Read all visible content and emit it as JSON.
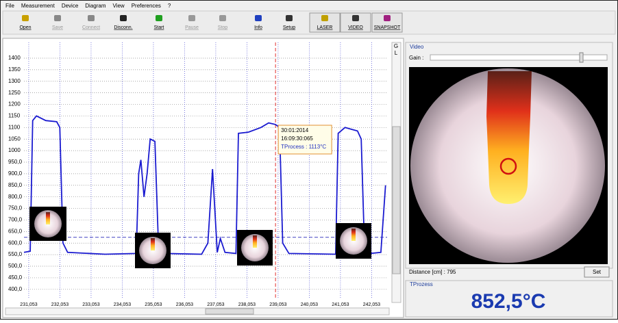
{
  "menu": [
    "File",
    "Measurement",
    "Device",
    "Diagram",
    "View",
    "Preferences",
    "?"
  ],
  "toolbar": [
    "Open",
    "Save",
    "Connect",
    "Disconn.",
    "Start",
    "Pause",
    "Stop",
    "Info",
    "Setup",
    "LASER",
    "VIDEO",
    "SNAPSHOT"
  ],
  "chart_data": {
    "type": "line",
    "xlim": [
      230.9,
      242.55
    ],
    "ylim": [
      358,
      1468
    ],
    "xticks": [
      {
        "value": 231.053,
        "label": "231,053"
      },
      {
        "value": 232.053,
        "label": "232,053"
      },
      {
        "value": 233.053,
        "label": "233,053"
      },
      {
        "value": 234.053,
        "label": "234,053"
      },
      {
        "value": 235.053,
        "label": "235,053"
      },
      {
        "value": 236.053,
        "label": "236,053"
      },
      {
        "value": 237.053,
        "label": "237,053"
      },
      {
        "value": 238.053,
        "label": "238,053"
      },
      {
        "value": 239.053,
        "label": "239,053"
      },
      {
        "value": 240.053,
        "label": "240,053"
      },
      {
        "value": 241.053,
        "label": "241,053"
      },
      {
        "value": 242.053,
        "label": "242,053"
      }
    ],
    "yticks": [
      {
        "value": 400,
        "label": "400,0"
      },
      {
        "value": 450,
        "label": "450,0"
      },
      {
        "value": 500,
        "label": "500,0"
      },
      {
        "value": 550,
        "label": "550,0"
      },
      {
        "value": 600,
        "label": "600,0"
      },
      {
        "value": 650,
        "label": "650,0"
      },
      {
        "value": 700,
        "label": "700,0"
      },
      {
        "value": 750,
        "label": "750,0"
      },
      {
        "value": 800,
        "label": "800,0"
      },
      {
        "value": 850,
        "label": "850,0"
      },
      {
        "value": 900,
        "label": "900,0"
      },
      {
        "value": 950,
        "label": "950,0"
      },
      1000,
      1050,
      1100,
      1150,
      1200,
      1250,
      1300,
      1350,
      1400
    ],
    "grid": true,
    "reference_line": 625,
    "cursor_x": 238.97,
    "tooltip": [
      "30:01:2014",
      "16:09:30:065",
      "TProcess : 1113°C"
    ],
    "x": [
      230.9,
      231.1,
      231.18,
      231.3,
      231.6,
      231.95,
      232.05,
      232.15,
      232.3,
      233.5,
      234.5,
      234.58,
      234.65,
      234.75,
      234.85,
      234.95,
      235.1,
      235.22,
      235.4,
      236.6,
      236.8,
      236.95,
      237.1,
      237.2,
      237.35,
      237.7,
      237.78,
      238.1,
      238.5,
      238.75,
      238.97,
      239.1,
      239.2,
      239.4,
      240.9,
      240.98,
      241.2,
      241.6,
      241.72,
      241.82,
      242.0,
      242.35,
      242.5
    ],
    "series": [
      {
        "color": "#1a1ad0",
        "values": [
          560,
          565,
          1130,
          1150,
          1130,
          1125,
          1100,
          600,
          560,
          552,
          555,
          900,
          960,
          800,
          900,
          1050,
          1040,
          570,
          555,
          552,
          600,
          920,
          560,
          620,
          560,
          555,
          1075,
          1080,
          1100,
          1120,
          1113,
          1100,
          600,
          555,
          552,
          1075,
          1100,
          1085,
          1050,
          600,
          555,
          560,
          850
        ]
      }
    ]
  },
  "side": {
    "scroll_g": "G",
    "scroll_l": "L",
    "video_title": "Video",
    "gain": "Gain :",
    "distance": "Distance [cm] : 795",
    "set": "Set",
    "tprozess_title": "TProzess",
    "tprozess_value": "852,5°C"
  }
}
